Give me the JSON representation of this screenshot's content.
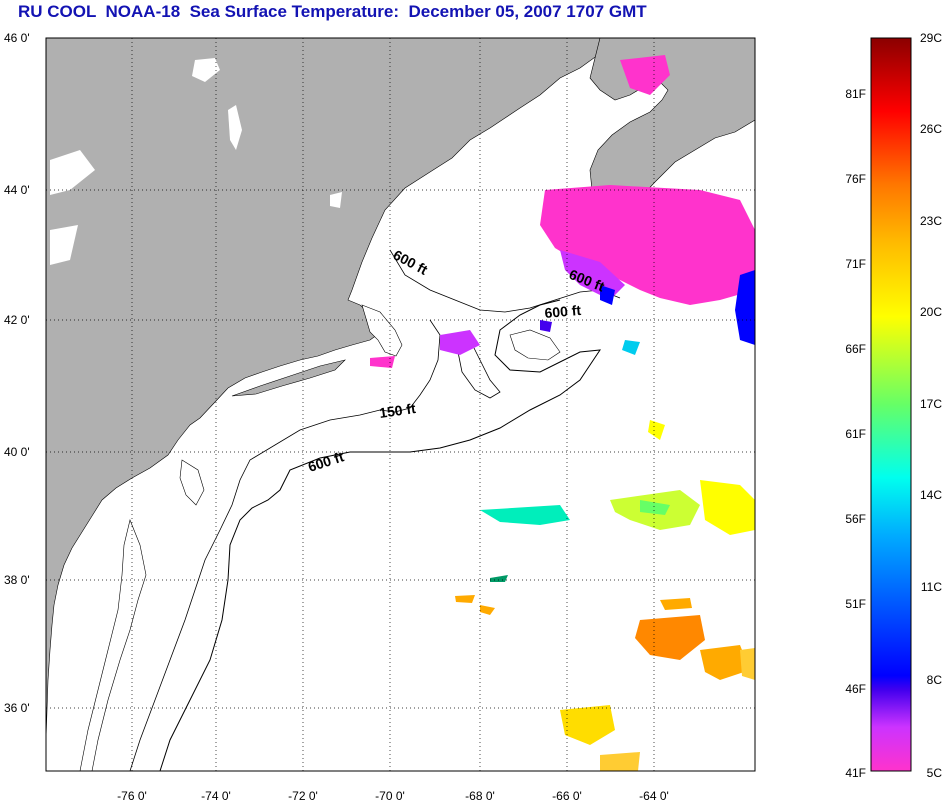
{
  "title": "RU COOL  NOAA-18  Sea Surface Temperature:  December 05, 2007 1707 GMT",
  "map": {
    "lat_ticks": [
      "46 0'",
      "44 0'",
      "42 0'",
      "40 0'",
      "38 0'",
      "36 0'"
    ],
    "lon_ticks": [
      "-76 0'",
      "-74 0'",
      "-72 0'",
      "-70 0'",
      "-68 0'",
      "-66 0'",
      "-64 0'"
    ],
    "contour_labels": [
      "600 ft",
      "600 ft",
      "600 ft",
      "150 ft",
      "600 ft"
    ]
  },
  "colorbar": {
    "fahrenheit": [
      "81F",
      "76F",
      "71F",
      "66F",
      "61F",
      "56F",
      "51F",
      "46F",
      "41F"
    ],
    "celsius": [
      "29C",
      "26C",
      "23C",
      "20C",
      "17C",
      "14C",
      "11C",
      "8C",
      "5C"
    ]
  },
  "colors": {
    "title": "#1313b3",
    "land": "#b0b0b0",
    "ocean": "#ffffff"
  }
}
